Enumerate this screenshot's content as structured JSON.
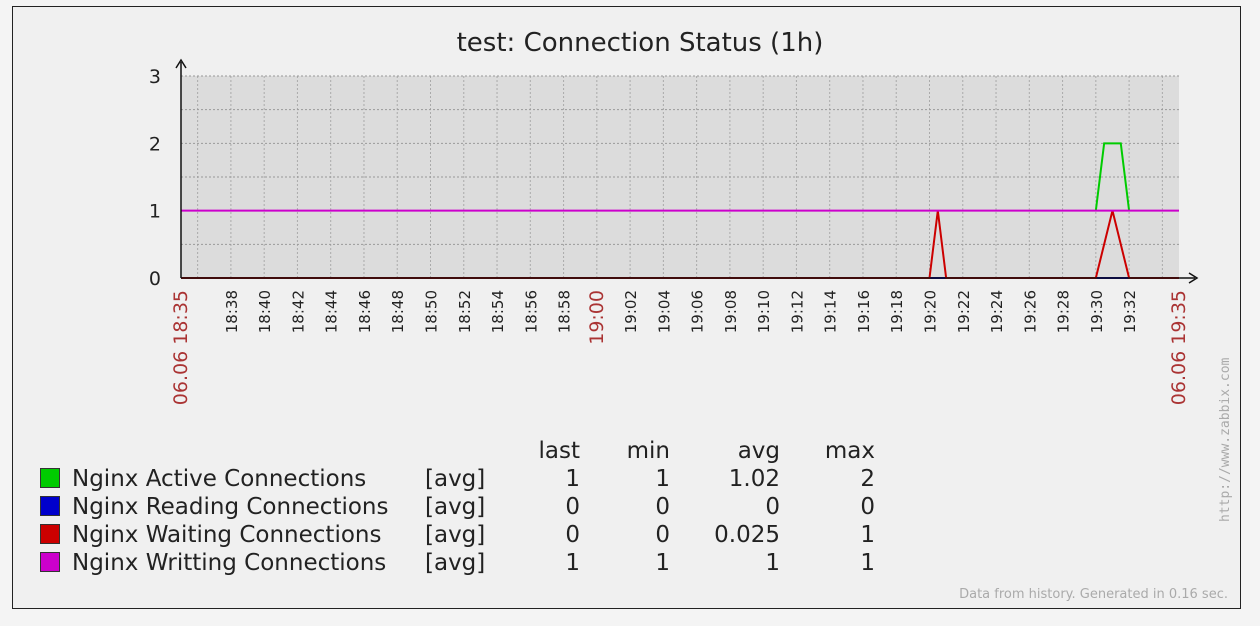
{
  "chart_data": {
    "type": "line",
    "title": "test: Connection Status (1h)",
    "x_start_label": "06.06 18:35",
    "x_end_label": "06.06 19:35",
    "x_tick_labels": [
      "18:38",
      "18:40",
      "18:42",
      "18:44",
      "18:46",
      "18:48",
      "18:50",
      "18:52",
      "18:54",
      "18:56",
      "18:58",
      "19:00",
      "19:02",
      "19:04",
      "19:06",
      "19:08",
      "19:10",
      "19:12",
      "19:14",
      "19:16",
      "19:18",
      "19:20",
      "19:22",
      "19:24",
      "19:26",
      "19:28",
      "19:30",
      "19:32"
    ],
    "highlighted_ticks": [
      "19:00"
    ],
    "y_ticks": [
      "0",
      "1",
      "2",
      "3"
    ],
    "ylim": [
      0,
      3
    ],
    "grid": true,
    "series": [
      {
        "name": "Nginx Active Connections",
        "color": "#00cc00",
        "x": [
          "18:35",
          "19:30",
          "19:30.5",
          "19:31.5",
          "19:32",
          "19:35"
        ],
        "y": [
          null,
          1,
          2,
          2,
          1,
          null
        ]
      },
      {
        "name": "Nginx Reading Connections",
        "color": "#0000cc",
        "x": [
          "18:35",
          "19:35"
        ],
        "y": [
          0,
          0
        ]
      },
      {
        "name": "Nginx Waiting Connections",
        "color": "#cc0000",
        "x": [
          "18:35",
          "19:20",
          "19:20.5",
          "19:21",
          "19:30",
          "19:31",
          "19:32",
          "19:35"
        ],
        "y": [
          0,
          0,
          1,
          0,
          0,
          1,
          0,
          0
        ]
      },
      {
        "name": "Nginx Writting Connections",
        "color": "#cc00cc",
        "x": [
          "18:35",
          "19:35"
        ],
        "y": [
          1,
          1
        ]
      }
    ]
  },
  "legend": {
    "headers": {
      "last": "last",
      "min": "min",
      "avg": "avg",
      "max": "max"
    },
    "rows": [
      {
        "name": "Nginx Active Connections",
        "func": "[avg]",
        "last": "1",
        "min": "1",
        "avg": "1.02",
        "max": "2",
        "color": "#00cc00"
      },
      {
        "name": "Nginx Reading Connections",
        "func": "[avg]",
        "last": "0",
        "min": "0",
        "avg": "0",
        "max": "0",
        "color": "#0000cc"
      },
      {
        "name": "Nginx Waiting Connections",
        "func": "[avg]",
        "last": "0",
        "min": "0",
        "avg": "0.025",
        "max": "1",
        "color": "#cc0000"
      },
      {
        "name": "Nginx Writting Connections",
        "func": "[avg]",
        "last": "1",
        "min": "1",
        "avg": "1",
        "max": "1",
        "color": "#cc00cc"
      }
    ]
  },
  "footer": "Data from history. Generated in 0.16 sec.",
  "watermark": "http://www.zabbix.com"
}
